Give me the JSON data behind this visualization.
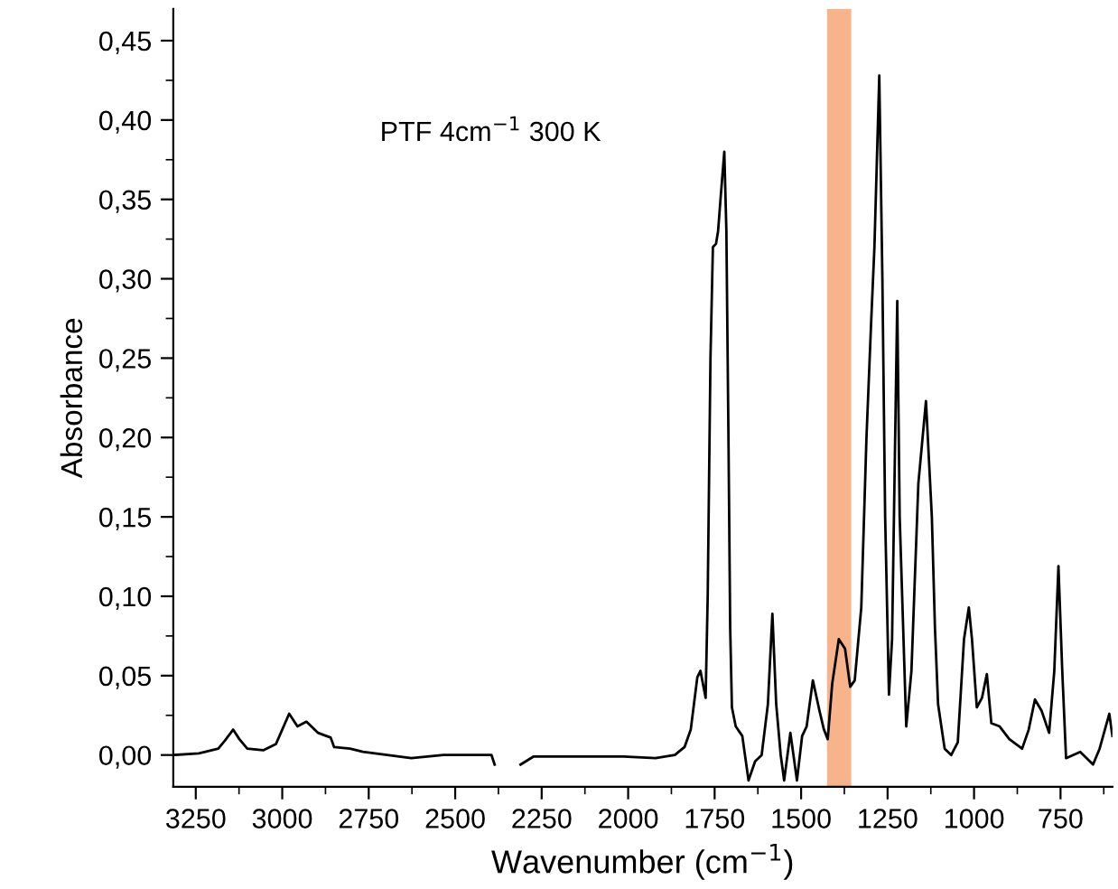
{
  "chart_data": {
    "type": "line",
    "xlabel": "Wavenumber (cm$^{−1}$)",
    "ylabel": "Absorbance",
    "annotations": [
      "PTF 4cm$^{−1}$ 300 K"
    ],
    "xlim": [
      3315,
      600
    ],
    "ylim": [
      -0.02,
      0.47
    ],
    "xticks": [
      3250,
      3000,
      2750,
      2500,
      2250,
      2000,
      1750,
      1500,
      1250,
      1000,
      750
    ],
    "yticks": [
      {
        "value": 0.0,
        "label": "0,00"
      },
      {
        "value": 0.05,
        "label": "0,05"
      },
      {
        "value": 0.1,
        "label": "0,10"
      },
      {
        "value": 0.15,
        "label": "0,15"
      },
      {
        "value": 0.2,
        "label": "0,20"
      },
      {
        "value": 0.25,
        "label": "0,25"
      },
      {
        "value": 0.3,
        "label": "0,30"
      },
      {
        "value": 0.35,
        "label": "0,35"
      },
      {
        "value": 0.4,
        "label": "0,40"
      },
      {
        "value": 0.45,
        "label": "0,45"
      }
    ],
    "grid": false,
    "legend": false,
    "marker": "none",
    "line_style": "solid",
    "bands": [
      {
        "axis": "x",
        "from": 1425,
        "to": 1355,
        "color": "#f7b48a"
      }
    ],
    "series": [
      {
        "color": "#000000",
        "x": [
          3315,
          3241,
          3185,
          3166,
          3142,
          3124,
          3101,
          3055,
          3018,
          2980,
          2956,
          2930,
          2897,
          2860,
          2850,
          2804,
          2767,
          2627,
          2534,
          2395,
          2386,
          2376,
          2330,
          2311,
          2274,
          2014,
          1921,
          1865,
          1837,
          1819,
          1800,
          1791,
          1776,
          1770,
          1762,
          1755,
          1746,
          1740,
          1733,
          1722,
          1716,
          1710,
          1705,
          1700,
          1689,
          1670,
          1652,
          1633,
          1614,
          1596,
          1583,
          1572,
          1559,
          1549,
          1531,
          1512,
          1497,
          1484,
          1466,
          1447,
          1434,
          1423,
          1410,
          1391,
          1373,
          1358,
          1345,
          1326,
          1311,
          1298,
          1288,
          1274,
          1265,
          1257,
          1246,
          1237,
          1222,
          1215,
          1196,
          1181,
          1161,
          1139,
          1122,
          1113,
          1104,
          1085,
          1066,
          1047,
          1029,
          1015,
          1006,
          992,
          977,
          963,
          950,
          926,
          898,
          861,
          842,
          824,
          805,
          783,
          768,
          756,
          745,
          734,
          693,
          656,
          637,
          609,
          600
        ],
        "values": [
          0.0,
          0.001,
          0.004,
          0.009,
          0.016,
          0.01,
          0.004,
          0.003,
          0.007,
          0.026,
          0.018,
          0.021,
          0.014,
          0.011,
          0.005,
          0.004,
          0.002,
          -0.002,
          0.0,
          0.0,
          -0.006,
          null,
          null,
          -0.006,
          -0.001,
          -0.001,
          -0.002,
          0.0,
          0.005,
          0.016,
          0.049,
          0.053,
          0.036,
          0.1,
          0.25,
          0.32,
          0.322,
          0.33,
          0.35,
          0.38,
          0.33,
          0.2,
          0.08,
          0.03,
          0.018,
          0.012,
          -0.016,
          -0.004,
          0.0,
          0.032,
          0.089,
          0.032,
          0.0,
          -0.016,
          0.014,
          -0.016,
          0.012,
          0.018,
          0.047,
          0.028,
          0.016,
          0.01,
          0.045,
          0.073,
          0.067,
          0.043,
          0.047,
          0.093,
          0.2,
          0.27,
          0.32,
          0.428,
          0.3,
          0.15,
          0.038,
          0.073,
          0.286,
          0.15,
          0.018,
          0.053,
          0.171,
          0.223,
          0.15,
          0.08,
          0.032,
          0.004,
          0.0,
          0.008,
          0.073,
          0.093,
          0.073,
          0.03,
          0.036,
          0.051,
          0.02,
          0.018,
          0.01,
          0.004,
          0.016,
          0.035,
          0.028,
          0.014,
          0.053,
          0.119,
          0.053,
          -0.002,
          0.002,
          -0.006,
          0.004,
          0.026,
          0.012
        ]
      }
    ]
  }
}
